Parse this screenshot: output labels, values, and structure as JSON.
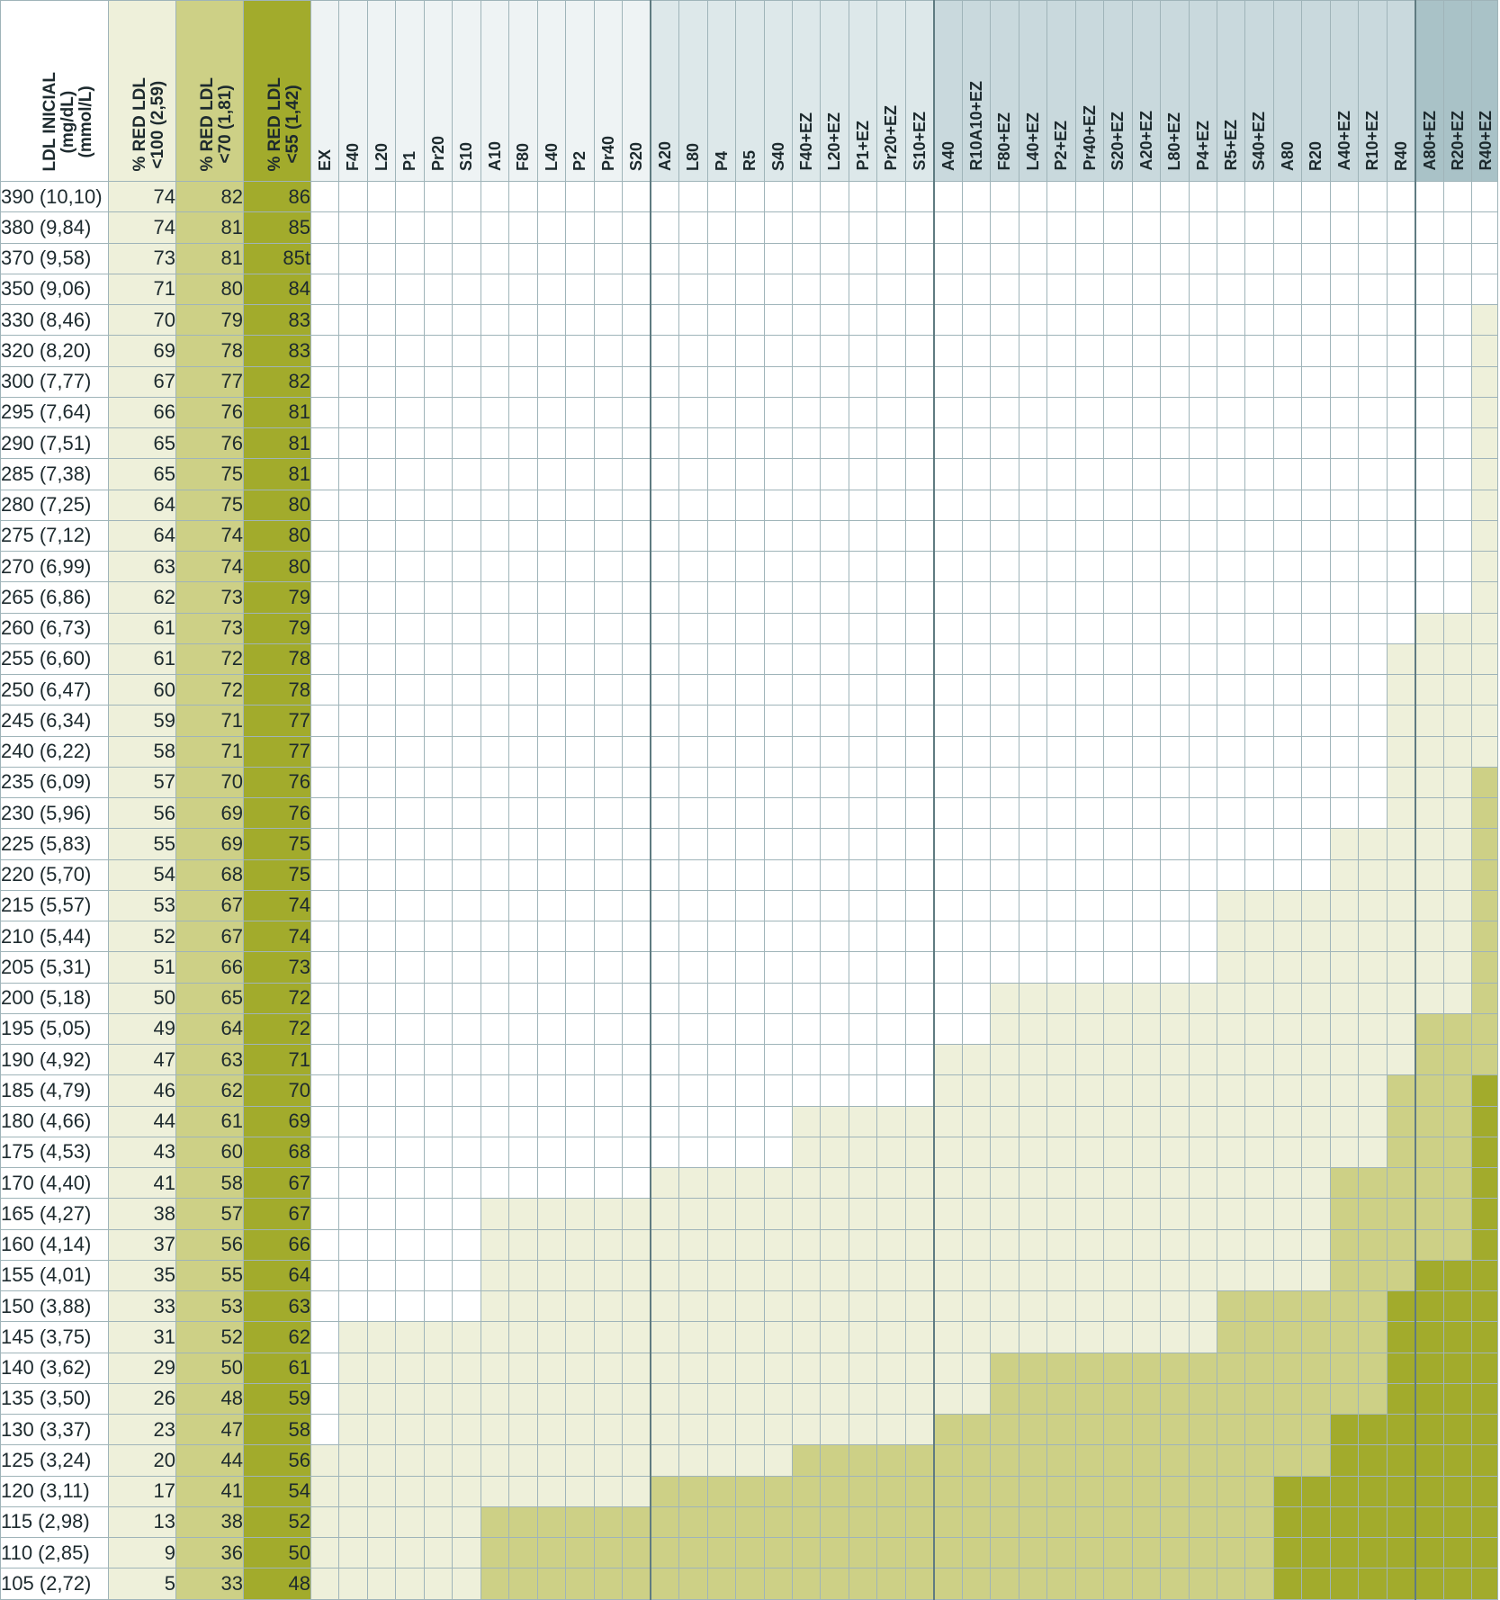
{
  "table": {
    "first_col_header": "LDL INICIAL\n(mg/dL)\n(mmol/L)",
    "target_headers": [
      "% RED LDL\n<100 (2,59)",
      "% RED LDL\n<70 (1,81)",
      "% RED LDL\n<55 (1,42)"
    ],
    "drug_columns": [
      "EX",
      "F40",
      "L20",
      "P1",
      "Pr20",
      "S10",
      "A10",
      "F80",
      "L40",
      "P2",
      "Pr40",
      "S20",
      "A20",
      "L80",
      "P4",
      "R5",
      "S40",
      "F40+EZ",
      "L20+EZ",
      "P1+EZ",
      "Pr20+EZ",
      "S10+EZ",
      "A40",
      "R10A10+EZ",
      "F80+EZ",
      "L40+EZ",
      "P2+EZ",
      "Pr40+EZ",
      "S20+EZ",
      "A20+EZ",
      "L80+EZ",
      "P4+EZ",
      "R5+EZ",
      "S40+EZ",
      "A80",
      "R20",
      "A40+EZ",
      "R10+EZ",
      "R40",
      "A80+EZ",
      "R20+EZ",
      "R40+EZ"
    ],
    "rows": [
      {
        "ldl": "390 (10,10)",
        "r100": "74",
        "r70": "82",
        "r55": "86"
      },
      {
        "ldl": "380 (9,84)",
        "r100": "74",
        "r70": "81",
        "r55": "85"
      },
      {
        "ldl": "370 (9,58)",
        "r100": "73",
        "r70": "81",
        "r55": "85t"
      },
      {
        "ldl": "350 (9,06)",
        "r100": "71",
        "r70": "80",
        "r55": "84"
      },
      {
        "ldl": "330 (8,46)",
        "r100": "70",
        "r70": "79",
        "r55": "83"
      },
      {
        "ldl": "320 (8,20)",
        "r100": "69",
        "r70": "78",
        "r55": "83"
      },
      {
        "ldl": "300 (7,77)",
        "r100": "67",
        "r70": "77",
        "r55": "82"
      },
      {
        "ldl": "295 (7,64)",
        "r100": "66",
        "r70": "76",
        "r55": "81"
      },
      {
        "ldl": "290 (7,51)",
        "r100": "65",
        "r70": "76",
        "r55": "81"
      },
      {
        "ldl": "285 (7,38)",
        "r100": "65",
        "r70": "75",
        "r55": "81"
      },
      {
        "ldl": "280 (7,25)",
        "r100": "64",
        "r70": "75",
        "r55": "80"
      },
      {
        "ldl": "275 (7,12)",
        "r100": "64",
        "r70": "74",
        "r55": "80"
      },
      {
        "ldl": "270 (6,99)",
        "r100": "63",
        "r70": "74",
        "r55": "80"
      },
      {
        "ldl": "265 (6,86)",
        "r100": "62",
        "r70": "73",
        "r55": "79"
      },
      {
        "ldl": "260 (6,73)",
        "r100": "61",
        "r70": "73",
        "r55": "79"
      },
      {
        "ldl": "255 (6,60)",
        "r100": "61",
        "r70": "72",
        "r55": "78"
      },
      {
        "ldl": "250 (6,47)",
        "r100": "60",
        "r70": "72",
        "r55": "78"
      },
      {
        "ldl": "245 (6,34)",
        "r100": "59",
        "r70": "71",
        "r55": "77"
      },
      {
        "ldl": "240 (6,22)",
        "r100": "58",
        "r70": "71",
        "r55": "77"
      },
      {
        "ldl": "235 (6,09)",
        "r100": "57",
        "r70": "70",
        "r55": "76"
      },
      {
        "ldl": "230 (5,96)",
        "r100": "56",
        "r70": "69",
        "r55": "76"
      },
      {
        "ldl": "225 (5,83)",
        "r100": "55",
        "r70": "69",
        "r55": "75"
      },
      {
        "ldl": "220 (5,70)",
        "r100": "54",
        "r70": "68",
        "r55": "75"
      },
      {
        "ldl": "215 (5,57)",
        "r100": "53",
        "r70": "67",
        "r55": "74"
      },
      {
        "ldl": "210 (5,44)",
        "r100": "52",
        "r70": "67",
        "r55": "74"
      },
      {
        "ldl": "205 (5,31)",
        "r100": "51",
        "r70": "66",
        "r55": "73"
      },
      {
        "ldl": "200 (5,18)",
        "r100": "50",
        "r70": "65",
        "r55": "72"
      },
      {
        "ldl": "195 (5,05)",
        "r100": "49",
        "r70": "64",
        "r55": "72"
      },
      {
        "ldl": "190 (4,92)",
        "r100": "47",
        "r70": "63",
        "r55": "71"
      },
      {
        "ldl": "185 (4,79)",
        "r100": "46",
        "r70": "62",
        "r55": "70"
      },
      {
        "ldl": "180 (4,66)",
        "r100": "44",
        "r70": "61",
        "r55": "69"
      },
      {
        "ldl": "175 (4,53)",
        "r100": "43",
        "r70": "60",
        "r55": "68"
      },
      {
        "ldl": "170 (4,40)",
        "r100": "41",
        "r70": "58",
        "r55": "67"
      },
      {
        "ldl": "165 (4,27)",
        "r100": "38",
        "r70": "57",
        "r55": "67"
      },
      {
        "ldl": "160 (4,14)",
        "r100": "37",
        "r70": "56",
        "r55": "66"
      },
      {
        "ldl": "155 (4,01)",
        "r100": "35",
        "r70": "55",
        "r55": "64"
      },
      {
        "ldl": "150 (3,88)",
        "r100": "33",
        "r70": "53",
        "r55": "63"
      },
      {
        "ldl": "145 (3,75)",
        "r100": "31",
        "r70": "52",
        "r55": "62"
      },
      {
        "ldl": "140 (3,62)",
        "r100": "29",
        "r70": "50",
        "r55": "61"
      },
      {
        "ldl": "135 (3,50)",
        "r100": "26",
        "r70": "48",
        "r55": "59"
      },
      {
        "ldl": "130 (3,37)",
        "r100": "23",
        "r70": "47",
        "r55": "58"
      },
      {
        "ldl": "125 (3,24)",
        "r100": "20",
        "r70": "44",
        "r55": "56"
      },
      {
        "ldl": "120 (3,11)",
        "r100": "17",
        "r70": "41",
        "r55": "54"
      },
      {
        "ldl": "115 (2,98)",
        "r100": "13",
        "r70": "38",
        "r55": "52"
      },
      {
        "ldl": "110 (2,85)",
        "r100": "9",
        "r70": "36",
        "r55": "50"
      },
      {
        "ldl": "105 (2,72)",
        "r100": "5",
        "r70": "33",
        "r55": "48"
      }
    ],
    "group_boundaries_after_column": [
      11,
      21,
      38
    ],
    "drug_header_shades": [
      "#eef3f4",
      "#dde8ea",
      "#c9d9dd",
      "#a9c2c7"
    ],
    "level_colors": [
      "#ffffff",
      "#eef0da",
      "#cdd086",
      "#a2ab2c"
    ],
    "target_column_colors": [
      "#eef0da",
      "#cdd086",
      "#a2ab2c"
    ],
    "shading_bands": [
      {
        "cols": [
          0,
          0
        ],
        "l1": 41,
        "l2": 99,
        "l3": 99
      },
      {
        "cols": [
          1,
          5
        ],
        "l1": 37,
        "l2": 99,
        "l3": 99
      },
      {
        "cols": [
          6,
          11
        ],
        "l1": 33,
        "l2": 43,
        "l3": 99
      },
      {
        "cols": [
          12,
          16
        ],
        "l1": 32,
        "l2": 42,
        "l3": 99
      },
      {
        "cols": [
          17,
          21
        ],
        "l1": 30,
        "l2": 41,
        "l3": 99
      },
      {
        "cols": [
          22,
          23
        ],
        "l1": 28,
        "l2": 40,
        "l3": 99
      },
      {
        "cols": [
          24,
          31
        ],
        "l1": 26,
        "l2": 38,
        "l3": 99
      },
      {
        "cols": [
          32,
          33
        ],
        "l1": 23,
        "l2": 36,
        "l3": 99
      },
      {
        "cols": [
          34,
          35
        ],
        "l1": 23,
        "l2": 36,
        "l3": 42
      },
      {
        "cols": [
          36,
          36
        ],
        "l1": 21,
        "l2": 32,
        "l3": 40
      },
      {
        "cols": [
          37,
          37
        ],
        "l1": 21,
        "l2": 32,
        "l3": 40
      },
      {
        "cols": [
          38,
          38
        ],
        "l1": 15,
        "l2": 29,
        "l3": 36
      },
      {
        "cols": [
          39,
          39
        ],
        "l1": 14,
        "l2": 27,
        "l3": 35
      },
      {
        "cols": [
          40,
          40
        ],
        "l1": 14,
        "l2": 27,
        "l3": 35
      },
      {
        "cols": [
          41,
          41
        ],
        "l1": 4,
        "l2": 19,
        "l3": 29
      }
    ]
  }
}
